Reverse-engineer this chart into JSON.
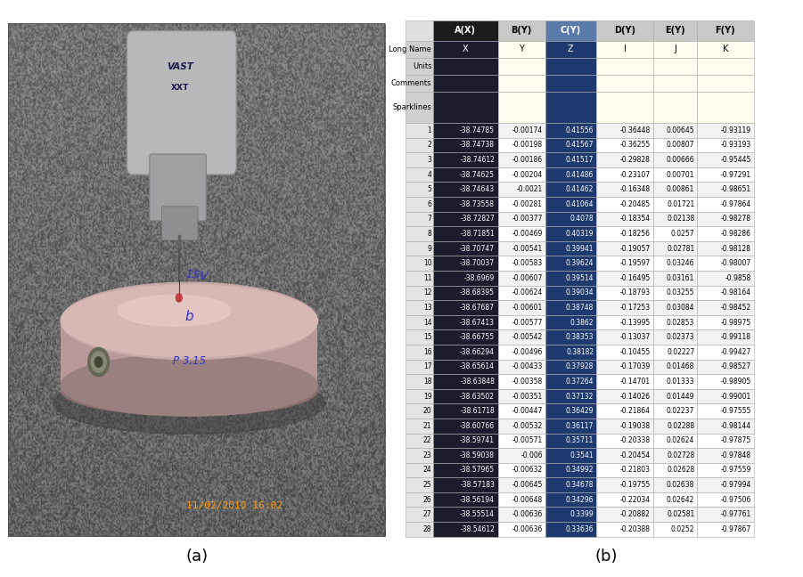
{
  "col_headers": [
    "",
    "A(X)",
    "B(Y)",
    "C(Y)",
    "D(Y)",
    "E(Y)",
    "F(Y)"
  ],
  "row_headers": [
    "Long Name",
    "Units",
    "Comments",
    "Sparklines"
  ],
  "long_names": [
    "",
    "X",
    "Y",
    "Z",
    "I",
    "J",
    "K"
  ],
  "col_A": [
    -38.74785,
    -38.74738,
    -38.74612,
    -38.74625,
    -38.74643,
    -38.73558,
    -38.72827,
    -38.71851,
    -38.70747,
    -38.70037,
    -38.6969,
    -38.68395,
    -38.67687,
    -38.67413,
    -38.66755,
    -38.66294,
    -38.65614,
    -38.63848,
    -38.63502,
    -38.61718,
    -38.60766,
    -38.59741,
    -38.59038,
    -38.57965,
    -38.57183,
    -38.56194,
    -38.55514,
    -38.54612
  ],
  "col_B": [
    -0.00174,
    -0.00198,
    -0.00186,
    -0.00204,
    -0.0021,
    -0.00281,
    -0.00377,
    -0.00469,
    -0.00541,
    -0.00583,
    -0.00607,
    -0.00624,
    -0.00601,
    -0.00577,
    -0.00542,
    -0.00496,
    -0.00433,
    -0.00358,
    -0.00351,
    -0.00447,
    -0.00532,
    -0.00571,
    -0.006,
    -0.00632,
    -0.00645,
    -0.00648,
    -0.00636,
    -0.00636
  ],
  "col_C": [
    0.41556,
    0.41567,
    0.41517,
    0.41486,
    0.41462,
    0.41064,
    0.4078,
    0.40319,
    0.39941,
    0.39624,
    0.39514,
    0.39034,
    0.38748,
    0.3862,
    0.38353,
    0.38182,
    0.37928,
    0.37264,
    0.37132,
    0.36429,
    0.36117,
    0.35711,
    0.3541,
    0.34992,
    0.34678,
    0.34296,
    0.3399,
    0.33636
  ],
  "col_D": [
    -0.36448,
    -0.36255,
    -0.29828,
    -0.23107,
    -0.16348,
    -0.20485,
    -0.18354,
    -0.18256,
    -0.19057,
    -0.19597,
    -0.16495,
    -0.18793,
    -0.17253,
    -0.13995,
    -0.13037,
    -0.10455,
    -0.17039,
    -0.14701,
    -0.14026,
    -0.21864,
    -0.19038,
    -0.20338,
    -0.20454,
    -0.21803,
    -0.19755,
    -0.22034,
    -0.20882,
    -0.20388
  ],
  "col_E": [
    0.00645,
    0.00807,
    0.00666,
    0.00701,
    0.00861,
    0.01721,
    0.02138,
    0.0257,
    0.02781,
    0.03246,
    0.03161,
    0.03255,
    0.03084,
    0.02853,
    0.02373,
    0.02227,
    0.01468,
    0.01333,
    0.01449,
    0.02237,
    0.02288,
    0.02624,
    0.02728,
    0.02628,
    0.02638,
    0.02642,
    0.02581,
    0.0252
  ],
  "col_F": [
    -0.93119,
    -0.93193,
    -0.95445,
    -0.97291,
    -0.98651,
    -0.97864,
    -0.98278,
    -0.98286,
    -0.98128,
    -0.98007,
    -0.9858,
    -0.98164,
    -0.98452,
    -0.98975,
    -0.99118,
    -0.99427,
    -0.98527,
    -0.98905,
    -0.99001,
    -0.97555,
    -0.98144,
    -0.97875,
    -0.97848,
    -0.97559,
    -0.97994,
    -0.97506,
    -0.97761,
    -0.97867
  ],
  "title_a": "(a)",
  "title_b": "(b)",
  "photo_timestamp": "11/02/2010 16:02",
  "bg_photo": "#7a7a7a",
  "col_header_bg_A": "#1c1c1c",
  "col_header_bg_C": "#5a7aaa",
  "col_header_bg_default": "#c8c8c8",
  "cell_bg_A": "#1c1c2e",
  "cell_bg_C": "#1e3a6e",
  "cell_bg_yellow": "#fffef0",
  "cell_bg_rowlabel": "#d8d8d8",
  "cell_bg_header_row": "#e0e0e0",
  "row_even": "#f2f2f2",
  "row_odd": "#ffffff",
  "border_color": "#aaaaaa",
  "text_white": "#ffffff",
  "text_black": "#111111",
  "text_gray_num": "#444444"
}
